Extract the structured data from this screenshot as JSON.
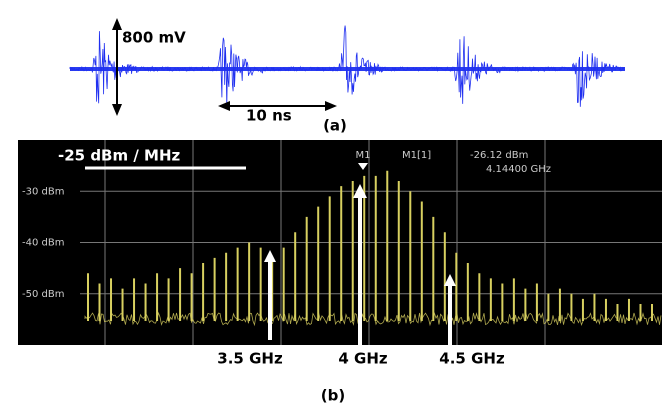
{
  "chart_data": [
    {
      "type": "waveform",
      "amplitude_label": "800 mV",
      "time_label": "10 ns",
      "caption": "(a)"
    },
    {
      "type": "bar",
      "caption": "(b)",
      "reference_label": "-25 dBm / MHz",
      "marker": {
        "name": "M1",
        "readout": "M1[1]",
        "level": "-26.12 dBm",
        "frequency": "4.14400 GHz"
      },
      "annotations": [
        "3.5 GHz",
        "4 GHz",
        "4.5 GHz"
      ],
      "color": "#d8d060",
      "ylim": [
        -60,
        -20
      ],
      "yticks": [
        {
          "value": -30,
          "label": "-30 dBm"
        },
        {
          "value": -40,
          "label": "-40 dBm"
        },
        {
          "value": -50,
          "label": "-50 dBm"
        }
      ],
      "grid": true,
      "values": [
        -46,
        -48,
        -47,
        -49,
        -47,
        -48,
        -46,
        -47,
        -45,
        -46,
        -44,
        -43,
        -42,
        -41,
        -40,
        -41,
        -43,
        -41,
        -38,
        -35,
        -33,
        -31,
        -29,
        -28,
        -27,
        -27,
        -26,
        -28,
        -30,
        -32,
        -35,
        -38,
        -42,
        -44,
        -46,
        -47,
        -48,
        -47,
        -49,
        -48,
        -50,
        -49,
        -50,
        -51,
        -50,
        -51,
        -52,
        -51,
        -52,
        -52
      ]
    }
  ]
}
